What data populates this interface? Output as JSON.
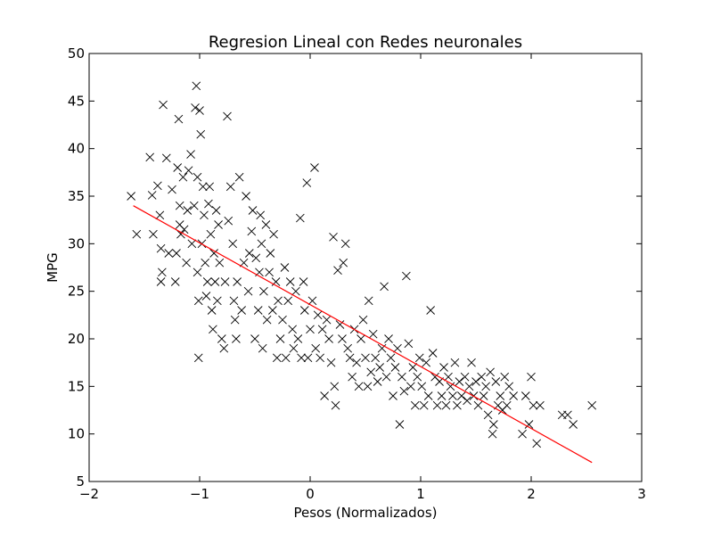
{
  "chart_data": {
    "type": "scatter",
    "title": "Regresion Lineal con Redes neuronales",
    "xlabel": "Pesos (Normalizados)",
    "ylabel": "MPG",
    "xlim": [
      -2,
      3
    ],
    "ylim": [
      5,
      50
    ],
    "x_ticks": [
      -2,
      -1,
      0,
      1,
      2,
      3
    ],
    "x_tick_labels": [
      "−2",
      "−1",
      "0",
      "1",
      "2",
      "3"
    ],
    "y_ticks": [
      5,
      10,
      15,
      20,
      25,
      30,
      35,
      40,
      45,
      50
    ],
    "y_tick_labels": [
      "5",
      "10",
      "15",
      "20",
      "25",
      "30",
      "35",
      "40",
      "45",
      "50"
    ],
    "grid": false,
    "legend": "none",
    "marker_color": "#000000",
    "line_color": "#ff0000",
    "regression_line": {
      "x": [
        -1.6,
        2.55
      ],
      "y": [
        34.0,
        7.0
      ]
    },
    "series": [
      {
        "marker": "x",
        "points": [
          [
            -1.62,
            35.0
          ],
          [
            -1.57,
            31.0
          ],
          [
            -1.45,
            39.1
          ],
          [
            -1.43,
            35.1
          ],
          [
            -1.42,
            31.0
          ],
          [
            -1.38,
            36.1
          ],
          [
            -1.36,
            33.0
          ],
          [
            -1.35,
            29.5
          ],
          [
            -1.35,
            26.0
          ],
          [
            -1.34,
            27.0
          ],
          [
            -1.33,
            44.6
          ],
          [
            -1.3,
            39.0
          ],
          [
            -1.28,
            29.0
          ],
          [
            -1.25,
            35.7
          ],
          [
            -1.22,
            26.0
          ],
          [
            -1.21,
            29.0
          ],
          [
            -1.2,
            38.0
          ],
          [
            -1.19,
            43.1
          ],
          [
            -1.18,
            34.0
          ],
          [
            -1.18,
            32.0
          ],
          [
            -1.17,
            31.0
          ],
          [
            -1.15,
            37.0
          ],
          [
            -1.14,
            31.5
          ],
          [
            -1.12,
            28.0
          ],
          [
            -1.11,
            33.5
          ],
          [
            -1.1,
            37.7
          ],
          [
            -1.08,
            39.4
          ],
          [
            -1.07,
            30.0
          ],
          [
            -1.05,
            34.0
          ],
          [
            -1.04,
            44.3
          ],
          [
            -1.03,
            46.6
          ],
          [
            -1.02,
            37.0
          ],
          [
            -1.02,
            27.0
          ],
          [
            -1.01,
            24.0
          ],
          [
            -1.01,
            18.0
          ],
          [
            -1.0,
            44.0
          ],
          [
            -0.99,
            41.5
          ],
          [
            -0.98,
            30.0
          ],
          [
            -0.97,
            36.0
          ],
          [
            -0.96,
            33.0
          ],
          [
            -0.95,
            28.0
          ],
          [
            -0.94,
            24.5
          ],
          [
            -0.93,
            26.0
          ],
          [
            -0.92,
            34.2
          ],
          [
            -0.91,
            36.0
          ],
          [
            -0.9,
            31.0
          ],
          [
            -0.89,
            23.0
          ],
          [
            -0.88,
            21.0
          ],
          [
            -0.87,
            29.0
          ],
          [
            -0.86,
            26.0
          ],
          [
            -0.85,
            33.5
          ],
          [
            -0.84,
            24.0
          ],
          [
            -0.83,
            32.0
          ],
          [
            -0.82,
            28.0
          ],
          [
            -0.8,
            20.0
          ],
          [
            -0.78,
            19.0
          ],
          [
            -0.77,
            26.0
          ],
          [
            -0.75,
            43.4
          ],
          [
            -0.74,
            32.4
          ],
          [
            -0.72,
            36.0
          ],
          [
            -0.7,
            30.0
          ],
          [
            -0.69,
            24.0
          ],
          [
            -0.68,
            22.0
          ],
          [
            -0.67,
            20.0
          ],
          [
            -0.66,
            26.0
          ],
          [
            -0.64,
            37.0
          ],
          [
            -0.62,
            23.0
          ],
          [
            -0.6,
            28.0
          ],
          [
            -0.58,
            35.0
          ],
          [
            -0.56,
            25.0
          ],
          [
            -0.55,
            29.0
          ],
          [
            -0.53,
            31.3
          ],
          [
            -0.52,
            33.5
          ],
          [
            -0.5,
            20.0
          ],
          [
            -0.49,
            28.5
          ],
          [
            -0.47,
            23.0
          ],
          [
            -0.46,
            27.0
          ],
          [
            -0.45,
            33.0
          ],
          [
            -0.44,
            30.0
          ],
          [
            -0.43,
            19.0
          ],
          [
            -0.42,
            25.0
          ],
          [
            -0.4,
            32.0
          ],
          [
            -0.39,
            22.0
          ],
          [
            -0.37,
            27.0
          ],
          [
            -0.36,
            29.0
          ],
          [
            -0.34,
            23.0
          ],
          [
            -0.33,
            31.0
          ],
          [
            -0.31,
            26.0
          ],
          [
            -0.3,
            18.0
          ],
          [
            -0.29,
            24.0
          ],
          [
            -0.27,
            20.0
          ],
          [
            -0.25,
            22.0
          ],
          [
            -0.23,
            27.5
          ],
          [
            -0.22,
            18.0
          ],
          [
            -0.2,
            24.0
          ],
          [
            -0.18,
            26.0
          ],
          [
            -0.16,
            21.0
          ],
          [
            -0.15,
            19.0
          ],
          [
            -0.13,
            25.0
          ],
          [
            -0.11,
            20.0
          ],
          [
            -0.09,
            32.7
          ],
          [
            -0.08,
            18.0
          ],
          [
            -0.06,
            26.0
          ],
          [
            -0.05,
            23.0
          ],
          [
            -0.03,
            36.4
          ],
          [
            -0.02,
            18.0
          ],
          [
            0.0,
            21.0
          ],
          [
            0.02,
            24.0
          ],
          [
            0.04,
            38.0
          ],
          [
            0.05,
            19.0
          ],
          [
            0.07,
            22.5
          ],
          [
            0.09,
            18.0
          ],
          [
            0.11,
            21.0
          ],
          [
            0.13,
            14.0
          ],
          [
            0.15,
            22.0
          ],
          [
            0.17,
            20.0
          ],
          [
            0.19,
            17.5
          ],
          [
            0.21,
            30.7
          ],
          [
            0.22,
            15.0
          ],
          [
            0.23,
            13.0
          ],
          [
            0.25,
            27.2
          ],
          [
            0.27,
            21.5
          ],
          [
            0.29,
            20.0
          ],
          [
            0.3,
            28.0
          ],
          [
            0.32,
            30.0
          ],
          [
            0.34,
            19.0
          ],
          [
            0.36,
            18.0
          ],
          [
            0.38,
            16.0
          ],
          [
            0.4,
            21.0
          ],
          [
            0.42,
            17.5
          ],
          [
            0.44,
            15.0
          ],
          [
            0.46,
            20.0
          ],
          [
            0.48,
            22.0
          ],
          [
            0.5,
            18.0
          ],
          [
            0.52,
            15.0
          ],
          [
            0.53,
            24.0
          ],
          [
            0.55,
            16.5
          ],
          [
            0.57,
            20.5
          ],
          [
            0.59,
            18.0
          ],
          [
            0.61,
            15.5
          ],
          [
            0.63,
            17.0
          ],
          [
            0.65,
            19.0
          ],
          [
            0.67,
            25.5
          ],
          [
            0.69,
            16.0
          ],
          [
            0.71,
            20.0
          ],
          [
            0.73,
            18.0
          ],
          [
            0.75,
            14.0
          ],
          [
            0.77,
            17.0
          ],
          [
            0.79,
            19.0
          ],
          [
            0.81,
            11.0
          ],
          [
            0.83,
            16.0
          ],
          [
            0.85,
            14.5
          ],
          [
            0.87,
            26.6
          ],
          [
            0.89,
            19.5
          ],
          [
            0.91,
            15.0
          ],
          [
            0.93,
            17.0
          ],
          [
            0.95,
            13.0
          ],
          [
            0.97,
            16.0
          ],
          [
            0.99,
            18.0
          ],
          [
            1.01,
            15.0
          ],
          [
            1.03,
            13.0
          ],
          [
            1.05,
            17.5
          ],
          [
            1.07,
            14.0
          ],
          [
            1.09,
            23.0
          ],
          [
            1.11,
            18.5
          ],
          [
            1.13,
            16.0
          ],
          [
            1.15,
            13.0
          ],
          [
            1.17,
            15.5
          ],
          [
            1.19,
            14.0
          ],
          [
            1.21,
            17.0
          ],
          [
            1.23,
            13.0
          ],
          [
            1.25,
            16.0
          ],
          [
            1.27,
            15.0
          ],
          [
            1.29,
            14.0
          ],
          [
            1.31,
            17.5
          ],
          [
            1.33,
            13.0
          ],
          [
            1.35,
            15.5
          ],
          [
            1.37,
            14.0
          ],
          [
            1.4,
            16.0
          ],
          [
            1.42,
            13.5
          ],
          [
            1.44,
            15.0
          ],
          [
            1.46,
            17.5
          ],
          [
            1.48,
            14.0
          ],
          [
            1.5,
            15.5
          ],
          [
            1.52,
            13.0
          ],
          [
            1.55,
            16.0
          ],
          [
            1.57,
            14.0
          ],
          [
            1.59,
            15.0
          ],
          [
            1.61,
            12.0
          ],
          [
            1.63,
            16.5
          ],
          [
            1.65,
            10.0
          ],
          [
            1.66,
            11.0
          ],
          [
            1.68,
            15.5
          ],
          [
            1.7,
            13.0
          ],
          [
            1.72,
            14.0
          ],
          [
            1.74,
            12.5
          ],
          [
            1.76,
            16.0
          ],
          [
            1.78,
            13.0
          ],
          [
            1.8,
            15.0
          ],
          [
            1.84,
            14.0
          ],
          [
            1.92,
            10.0
          ],
          [
            1.95,
            14.0
          ],
          [
            1.98,
            11.0
          ],
          [
            2.0,
            16.0
          ],
          [
            2.02,
            13.0
          ],
          [
            2.05,
            9.0
          ],
          [
            2.08,
            13.0
          ],
          [
            2.28,
            12.0
          ],
          [
            2.33,
            12.0
          ],
          [
            2.38,
            11.0
          ],
          [
            2.55,
            13.0
          ]
        ]
      }
    ]
  }
}
